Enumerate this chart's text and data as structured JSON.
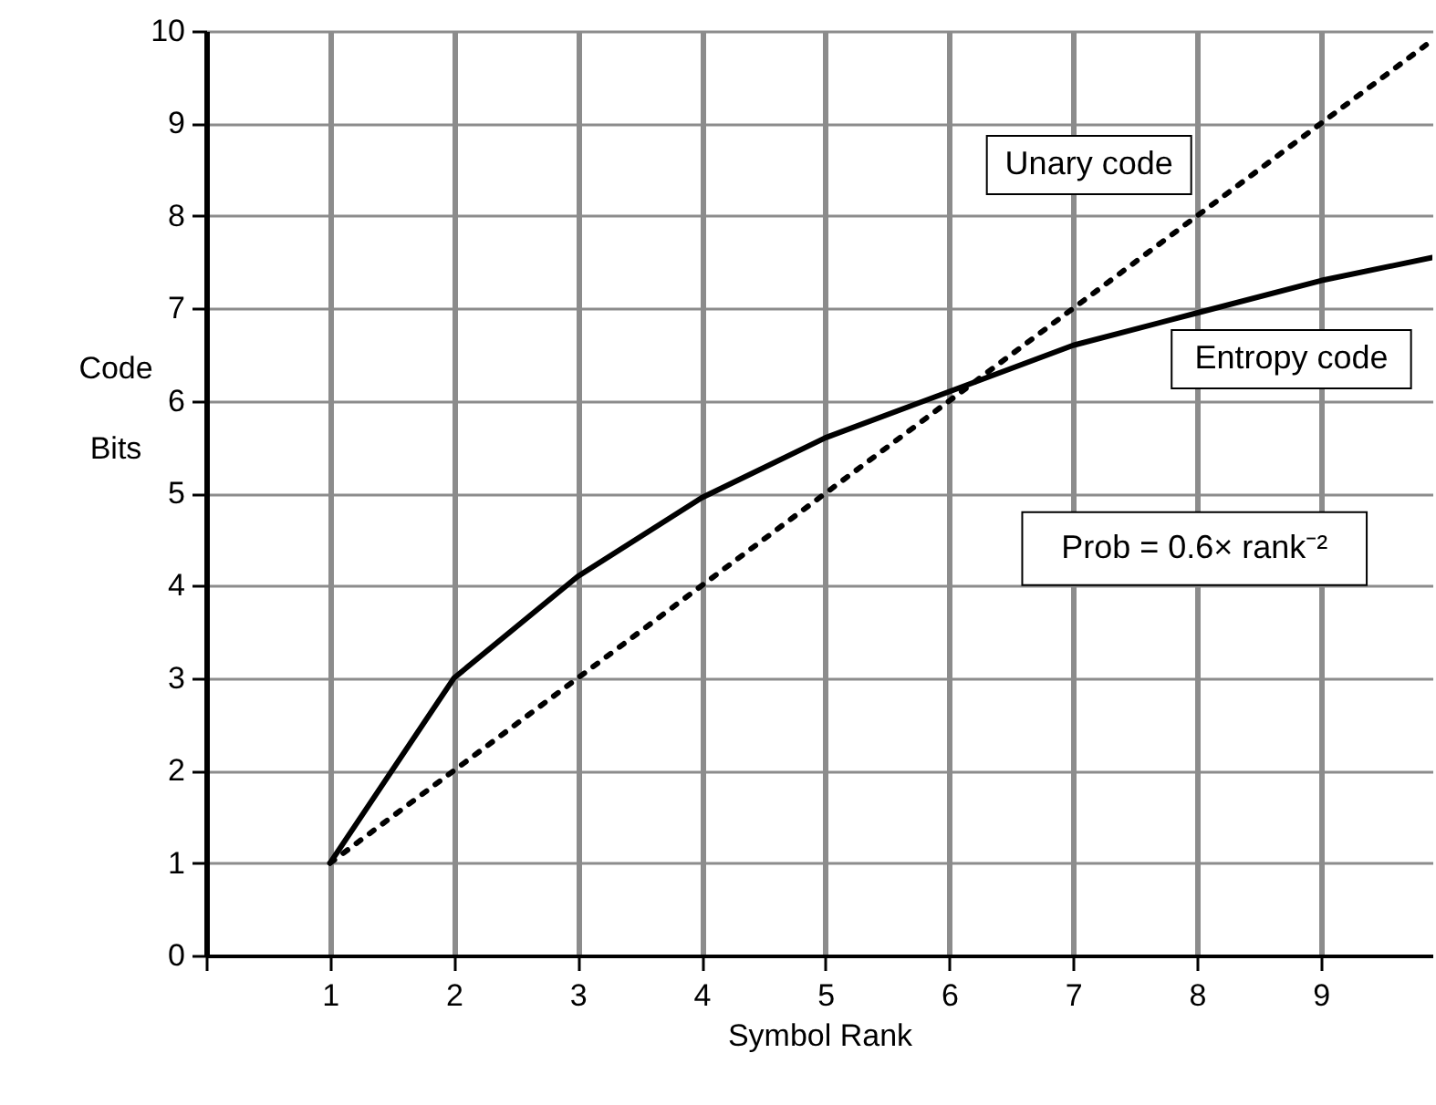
{
  "chart_data": {
    "type": "line",
    "xlabel": "Symbol Rank",
    "ylabel": "Code Bits",
    "xlim": [
      0,
      9.9
    ],
    "ylim": [
      0,
      10
    ],
    "xticks": [
      {
        "value": 0,
        "label": null
      },
      1,
      2,
      3,
      4,
      5,
      6,
      7,
      8,
      9
    ],
    "yticks": [
      0,
      1,
      2,
      3,
      4,
      5,
      6,
      7,
      8,
      9,
      10
    ],
    "grid": true,
    "series": [
      {
        "name": "Unary code",
        "color": "#000000",
        "line_style": "dotted",
        "x": [
          1,
          9.85
        ],
        "values": [
          1,
          9.85
        ]
      },
      {
        "name": "Entropy code",
        "color": "#000000",
        "line_style": "solid",
        "x": [
          1,
          2,
          3,
          4,
          5,
          6,
          7,
          8,
          9,
          9.9
        ],
        "values": [
          1,
          3,
          4.1,
          4.95,
          5.6,
          6.1,
          6.6,
          6.95,
          7.3,
          7.55
        ]
      }
    ],
    "annotations": [
      "Prob = 0.6× rank⁻²"
    ]
  }
}
